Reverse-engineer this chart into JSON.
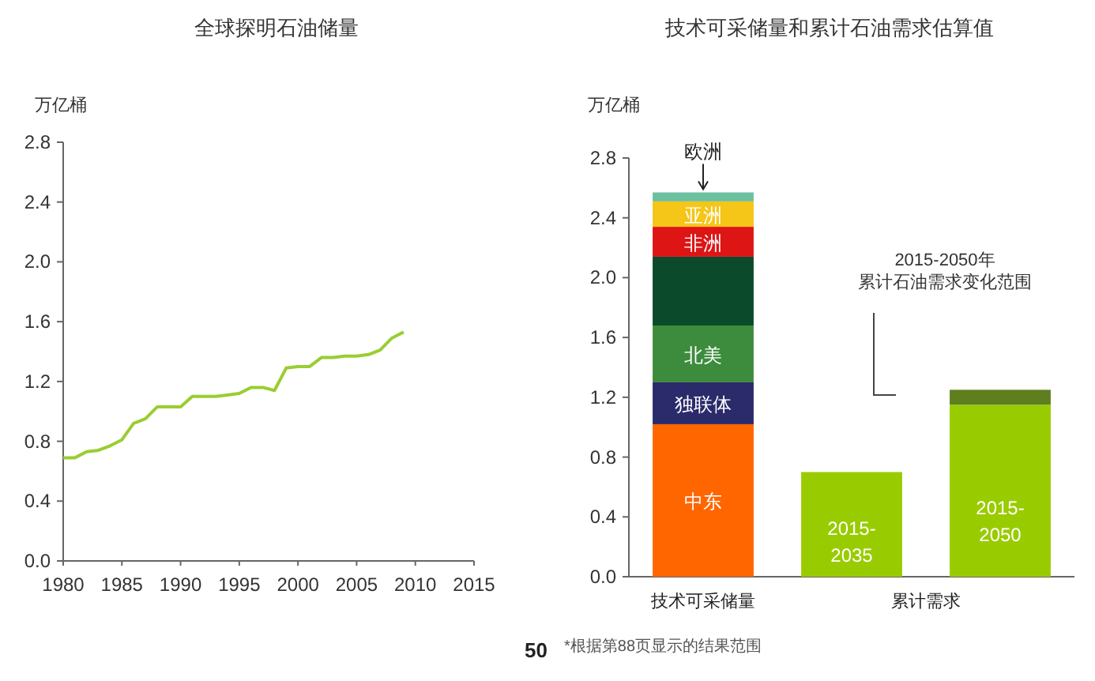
{
  "chart_data": [
    {
      "type": "line",
      "title": "全球探明石油储量",
      "ylabel": "万亿桶",
      "x": [
        1980,
        1981,
        1982,
        1983,
        1984,
        1985,
        1986,
        1987,
        1988,
        1989,
        1990,
        1991,
        1992,
        1993,
        1994,
        1995,
        1996,
        1997,
        1998,
        1999,
        2000,
        2001,
        2002,
        2003,
        2004,
        2005,
        2006,
        2007,
        2008,
        2009
      ],
      "series": [
        {
          "color": "#9acd32",
          "values": [
            0.69,
            0.69,
            0.73,
            0.74,
            0.77,
            0.81,
            0.92,
            0.95,
            1.03,
            1.03,
            1.03,
            1.1,
            1.1,
            1.1,
            1.11,
            1.12,
            1.16,
            1.16,
            1.14,
            1.29,
            1.3,
            1.3,
            1.36,
            1.36,
            1.37,
            1.37,
            1.38,
            1.41,
            1.49,
            1.53
          ]
        }
      ],
      "xlim": [
        1980,
        2015
      ],
      "xticks": [
        1980,
        1985,
        1990,
        1995,
        2000,
        2005,
        2010,
        2015
      ],
      "ylim": [
        0,
        2.8
      ],
      "yticks": [
        {
          "value": 0,
          "label": "0.0"
        },
        {
          "value": 0.4,
          "label": "0.4"
        },
        {
          "value": 0.8,
          "label": "0.8"
        },
        {
          "value": 1.2,
          "label": "1.2"
        },
        {
          "value": 1.6,
          "label": "1.6"
        },
        {
          "value": 2.0,
          "label": "2.0"
        },
        {
          "value": 2.4,
          "label": "2.4"
        },
        {
          "value": 2.8,
          "label": "2.8"
        }
      ],
      "grid": false,
      "marker": "none",
      "line_style": "solid",
      "annotations": [
        "50"
      ]
    },
    {
      "type": "bar",
      "stacked": true,
      "title": "技术可采储量和累计石油需求估算值",
      "ylabel": "万亿桶",
      "categories": [
        "技术可采储量",
        "2015-2035",
        "2015-2050"
      ],
      "series": [
        {
          "name": "中东",
          "color": "#ff6600",
          "values": [
            1.02,
            null,
            null
          ]
        },
        {
          "name": "独联体",
          "color": "#2b2a6b",
          "values": [
            0.28,
            null,
            null
          ]
        },
        {
          "name": "北美",
          "color": "#3d8b3d",
          "values": [
            0.38,
            null,
            null
          ]
        },
        {
          "color": "#0b4a2b",
          "values": [
            0.46,
            null,
            null
          ]
        },
        {
          "name": "非洲",
          "color": "#dd1515",
          "values": [
            0.2,
            null,
            null
          ]
        },
        {
          "name": "亚洲",
          "color": "#f5c518",
          "values": [
            0.17,
            null,
            null
          ]
        },
        {
          "name": "欧洲",
          "color": "#6cc0a0",
          "values": [
            0.06,
            null,
            null
          ]
        },
        {
          "color": "#99cc00",
          "values": [
            null,
            0.7,
            1.15
          ]
        },
        {
          "color": "#5f7f1f",
          "values": [
            null,
            null,
            0.1
          ]
        }
      ],
      "ylim": [
        0,
        2.8
      ],
      "yticks": [
        {
          "value": 0,
          "label": "0.0"
        },
        {
          "value": 0.4,
          "label": "0.4"
        },
        {
          "value": 0.8,
          "label": "0.8"
        },
        {
          "value": 1.2,
          "label": "1.2"
        },
        {
          "value": 1.6,
          "label": "1.6"
        },
        {
          "value": 2.0,
          "label": "2.0"
        },
        {
          "value": 2.4,
          "label": "2.4"
        },
        {
          "value": 2.8,
          "label": "2.8"
        }
      ],
      "grid": false,
      "annotations": [
        "2015-2050年累计石油需求变化范围",
        "累计需求",
        "*根据第88页显示的结果范围"
      ]
    }
  ]
}
